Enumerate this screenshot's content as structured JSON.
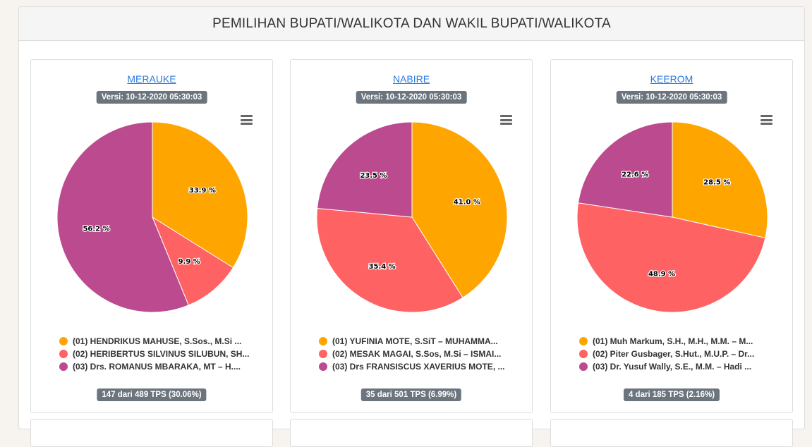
{
  "header": {
    "title": "PEMILIHAN BUPATI/WALIKOTA DAN WAKIL BUPATI/WALIKOTA"
  },
  "colors": [
    "#ffa500",
    "#ff6262",
    "#bb4b8e"
  ],
  "chart_data": [
    {
      "type": "pie",
      "title": "MERAUKE",
      "version": "Versi: 10-12-2020 05:30:03",
      "tps": "147 dari 489 TPS (30.06%)",
      "slices": [
        {
          "label": "(01) HENDRIKUS MAHUSE, S.Sos., M.Si ...",
          "value": 33.9,
          "display": "33.9 %"
        },
        {
          "label": "(02) HERIBERTUS SILVINUS SILUBUN, SH...",
          "value": 9.9,
          "display": "9.9 %"
        },
        {
          "label": "(03) Drs. ROMANUS MBARAKA, MT – H....",
          "value": 56.2,
          "display": "56.2 %"
        }
      ]
    },
    {
      "type": "pie",
      "title": "NABIRE",
      "version": "Versi: 10-12-2020 05:30:03",
      "tps": "35 dari 501 TPS (6.99%)",
      "slices": [
        {
          "label": "(01) YUFINIA MOTE, S.SiT – MUHAMMA...",
          "value": 41.0,
          "display": "41.0 %"
        },
        {
          "label": "(02) MESAK MAGAI, S.Sos, M.Si – ISMAI...",
          "value": 35.4,
          "display": "35.4 %"
        },
        {
          "label": "(03) Drs FRANSISCUS XAVERIUS MOTE, ...",
          "value": 23.5,
          "display": "23.5 %"
        }
      ]
    },
    {
      "type": "pie",
      "title": "KEEROM",
      "version": "Versi: 10-12-2020 05:30:03",
      "tps": "4 dari 185 TPS (2.16%)",
      "slices": [
        {
          "label": "(01) Muh Markum, S.H., M.H., M.M. – M...",
          "value": 28.5,
          "display": "28.5 %"
        },
        {
          "label": "(02) Piter Gusbager, S.Hut., M.U.P. – Dr...",
          "value": 48.9,
          "display": "48.9 %"
        },
        {
          "label": "(03) Dr. Yusuf Wally, S.E., M.M. – Hadi ...",
          "value": 22.6,
          "display": "22.6 %"
        }
      ]
    }
  ]
}
